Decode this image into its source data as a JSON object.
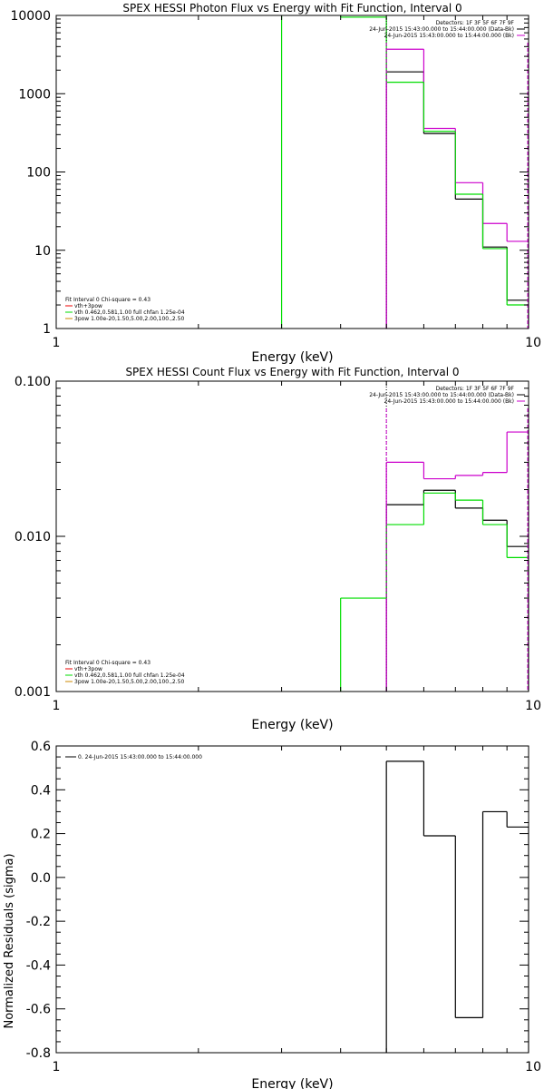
{
  "colors": {
    "background": "#ffffff",
    "axes": "#000000",
    "black": "#000000",
    "magenta": "#cc00cc",
    "red": "#ee0000",
    "green": "#00dd00",
    "orange": "#cc8800"
  },
  "chart_data": [
    {
      "type": "line",
      "title": "SPEX HESSI Photon Flux vs Energy with Fit Function, Interval 0",
      "xlabel": "Energy (keV)",
      "ylabel": "",
      "xscale": "log",
      "yscale": "log",
      "xlim": [
        1,
        10
      ],
      "ylim": [
        1,
        10000
      ],
      "xticks": [
        1,
        10
      ],
      "xtick_labels": [
        "1",
        "10"
      ],
      "yticks": [
        1,
        10,
        100,
        1000,
        10000
      ],
      "ytick_labels": [
        "1",
        "10",
        "100",
        "1000",
        "10000"
      ],
      "vline": 5.0,
      "legend_topright": [
        "Detectors: 1F 3F 5F 6F 7F 9F",
        "24-Jun-2015 15:43:00.000 to 15:44:00.000 (Data-Bk)",
        "24-Jun-2015 15:43:00.000 to 15:44:00.000 (Bk)"
      ],
      "legend_bottomleft": [
        "Fit Interval 0   Chi-square = 0.43",
        "vth+3pow",
        "vth 0.462,0.581,1.00  full chfan 1.25e-04",
        "3pow 1.00e-20,1.50,5.00,2.00,100.,2.50"
      ],
      "series": [
        {
          "color": "black",
          "edges": [
            5,
            6,
            7,
            8,
            9,
            10
          ],
          "values": [
            1900,
            310,
            45,
            11,
            2.3
          ]
        },
        {
          "color": "magenta",
          "edges": [
            5,
            6,
            7,
            8,
            9,
            10
          ],
          "values": [
            3700,
            360,
            73,
            22,
            13
          ]
        },
        {
          "color": "green",
          "edges": [
            3,
            4,
            5,
            6,
            7,
            8,
            9,
            10
          ],
          "values": [
            12000,
            9500,
            1400,
            330,
            52,
            10.5,
            2.0
          ]
        }
      ]
    },
    {
      "type": "line",
      "title": "SPEX HESSI Count Flux vs Energy with Fit Function, Interval 0",
      "xlabel": "Energy (keV)",
      "ylabel": "",
      "xscale": "log",
      "yscale": "log",
      "xlim": [
        1,
        10
      ],
      "ylim": [
        0.001,
        0.1
      ],
      "xticks": [
        1,
        10
      ],
      "xtick_labels": [
        "1",
        "10"
      ],
      "yticks": [
        0.001,
        0.01,
        0.1
      ],
      "ytick_labels": [
        "0.001",
        "0.010",
        "0.100"
      ],
      "vline": 5.0,
      "legend_topright": [
        "Detectors: 1F 3F 5F 6F 7F 9F",
        "24-Jun-2015 15:43:00.000 to 15:44:00.000 (Data-Bk)",
        "24-Jun-2015 15:43:00.000 to 15:44:00.000 (Bk)"
      ],
      "legend_bottomleft": [
        "Fit Interval 0   Chi-square = 0.43",
        "vth+3pow",
        "vth 0.462,0.581,1.00  full chfan 1.25e-04",
        "3pow 1.00e-20,1.50,5.00,2.00,100.,2.50"
      ],
      "series": [
        {
          "color": "black",
          "edges": [
            5,
            6,
            7,
            8,
            9,
            10
          ],
          "values": [
            0.016,
            0.0198,
            0.0152,
            0.0127,
            0.0086
          ]
        },
        {
          "color": "magenta",
          "edges": [
            5,
            6,
            7,
            8,
            9,
            10
          ],
          "values": [
            0.03,
            0.0235,
            0.0247,
            0.0258,
            0.047
          ]
        },
        {
          "color": "green",
          "edges": [
            4,
            5,
            6,
            7,
            8,
            9,
            10
          ],
          "values": [
            0.004,
            0.0119,
            0.019,
            0.0171,
            0.0119,
            0.0073
          ]
        }
      ]
    },
    {
      "type": "line",
      "title": "",
      "xlabel": "Energy (keV)",
      "ylabel": "Normalized Residuals (sigma)",
      "xscale": "log",
      "yscale": "linear",
      "xlim": [
        1,
        10
      ],
      "ylim": [
        -0.8,
        0.6
      ],
      "xticks": [
        1,
        10
      ],
      "xtick_labels": [
        "1",
        "10"
      ],
      "yticks": [
        -0.8,
        -0.6,
        -0.4,
        -0.2,
        0.0,
        0.2,
        0.4,
        0.6
      ],
      "ytick_labels": [
        "-0.8",
        "-0.6",
        "-0.4",
        "-0.2",
        "0.0",
        "0.2",
        "0.4",
        "0.6"
      ],
      "legend_topright": [],
      "legend_bottomleft": [
        "0. 24-Jun-2015 15:43:00.000 to 15:44:00.000"
      ],
      "series": [
        {
          "color": "black",
          "edges": [
            5,
            6,
            7,
            8,
            9,
            10
          ],
          "values": [
            0.53,
            0.19,
            -0.64,
            0.3,
            0.23
          ]
        }
      ]
    }
  ]
}
